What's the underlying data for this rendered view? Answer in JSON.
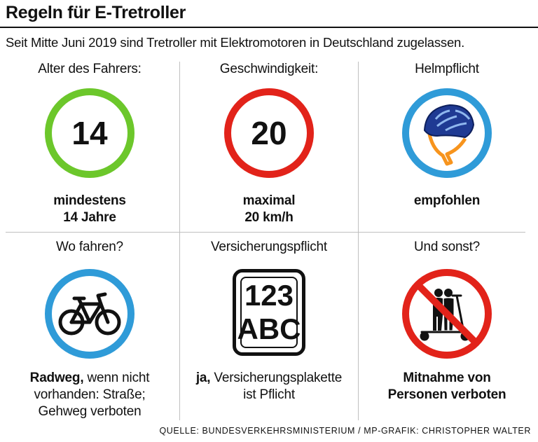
{
  "title": "Regeln für E-Tretroller",
  "intro": "Seit Mitte Juni 2019 sind Tretroller mit Elektromotoren in Deutschland zugelassen.",
  "cells": [
    {
      "heading": "Alter des Fahrers:",
      "sign_value": "14",
      "icon": "age-sign-icon",
      "caption_bold": "mindestens",
      "caption_bold_2": "14 Jahre",
      "ring_color": "#6cc72b"
    },
    {
      "heading": "Geschwindigkeit:",
      "sign_value": "20",
      "icon": "speed-limit-sign-icon",
      "caption_bold": "maximal",
      "caption_bold_2": "20 km/h",
      "ring_color": "#e2231a"
    },
    {
      "heading": "Helmpflicht",
      "icon": "helmet-icon",
      "caption_bold": "empfohlen",
      "ring_color": "#2f9bd8"
    },
    {
      "heading": "Wo fahren?",
      "icon": "bicycle-icon",
      "caption_bold": "Radweg,",
      "caption_rest": " wenn nicht",
      "caption_line2": "vorhanden: Straße;",
      "caption_line3": "Gehweg verboten",
      "ring_color": "#2f9bd8"
    },
    {
      "heading": "Versicherungspflicht",
      "icon": "insurance-plate-icon",
      "plate_line1": "123",
      "plate_line2": "ABC",
      "caption_bold": "ja,",
      "caption_rest": " Versicherungsplakette",
      "caption_line2": "ist Pflicht"
    },
    {
      "heading": "Und sonst?",
      "icon": "no-passengers-icon",
      "caption_bold": "Mitnahme von",
      "caption_bold_2": "Personen verboten",
      "ring_color": "#e2231a"
    }
  ],
  "source": "QUELLE: BUNDESVERKEHRSMINISTERIUM / MP-GRAFIK: CHRISTOPHER WALTER"
}
